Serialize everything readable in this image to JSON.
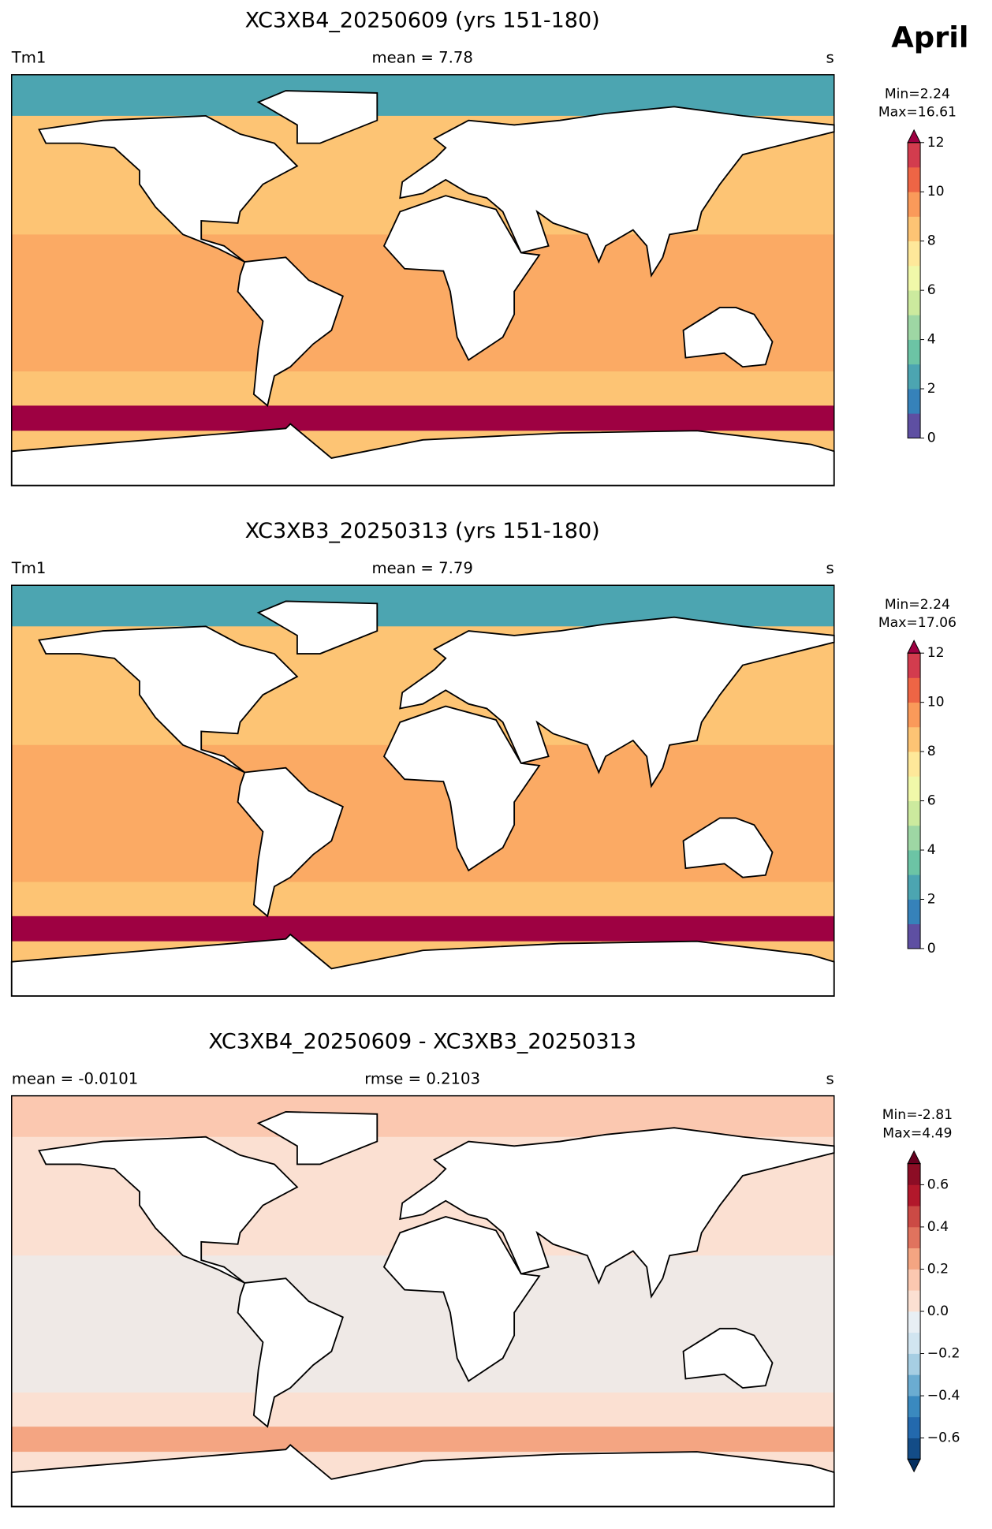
{
  "figure_title": "April",
  "panels": [
    {
      "title": "XC3XB4_20250609 (yrs 151-180)",
      "left_label": "Tm1",
      "center_label": "mean = 7.78",
      "right_label": "s",
      "stats": [
        "Min=2.24",
        "Max=16.61"
      ],
      "colorbar": {
        "range": [
          0,
          12
        ],
        "ticks": [
          0,
          2,
          4,
          6,
          8,
          10,
          12
        ],
        "extend": "max",
        "colors": [
          "#5e4fa2",
          "#3682ba",
          "#4ca5b1",
          "#6cc4a5",
          "#9ed7a4",
          "#ccea9e",
          "#f0f8a9",
          "#fee89a",
          "#fdc474",
          "#fa9a5a",
          "#ee6545",
          "#d33c4e"
        ],
        "over_color": "#9e0142"
      }
    },
    {
      "title": "XC3XB3_20250313 (yrs 151-180)",
      "left_label": "Tm1",
      "center_label": "mean = 7.79",
      "right_label": "s",
      "stats": [
        "Min=2.24",
        "Max=17.06"
      ],
      "colorbar": {
        "range": [
          0,
          12
        ],
        "ticks": [
          0,
          2,
          4,
          6,
          8,
          10,
          12
        ],
        "extend": "max",
        "colors": [
          "#5e4fa2",
          "#3682ba",
          "#4ca5b1",
          "#6cc4a5",
          "#9ed7a4",
          "#ccea9e",
          "#f0f8a9",
          "#fee89a",
          "#fdc474",
          "#fa9a5a",
          "#ee6545",
          "#d33c4e"
        ],
        "over_color": "#9e0142"
      }
    },
    {
      "title": "XC3XB4_20250609 - XC3XB3_20250313",
      "left_label": "mean = -0.0101",
      "center_label": "rmse = 0.2103",
      "right_label": "s",
      "stats": [
        "Min=-2.81",
        "Max=4.49"
      ],
      "colorbar": {
        "range": [
          -0.7,
          0.7
        ],
        "ticks": [
          {
            "value": -0.6,
            "label": "−0.6"
          },
          {
            "value": -0.4,
            "label": "−0.4"
          },
          {
            "value": -0.2,
            "label": "−0.2"
          },
          {
            "value": 0,
            "label": "0.0"
          },
          0.2,
          0.4,
          0.6
        ],
        "extend": "both",
        "colors": [
          "#134c87",
          "#2369ad",
          "#3a89bf",
          "#6bacd1",
          "#a6cee3",
          "#d1e5f0",
          "#e8eff4",
          "#fbe0d2",
          "#fbc8b0",
          "#f4a582",
          "#e0735e",
          "#cb4a45",
          "#b2182b",
          "#8c0d25"
        ],
        "under_color": "#053061",
        "over_color": "#67001f"
      }
    }
  ]
}
